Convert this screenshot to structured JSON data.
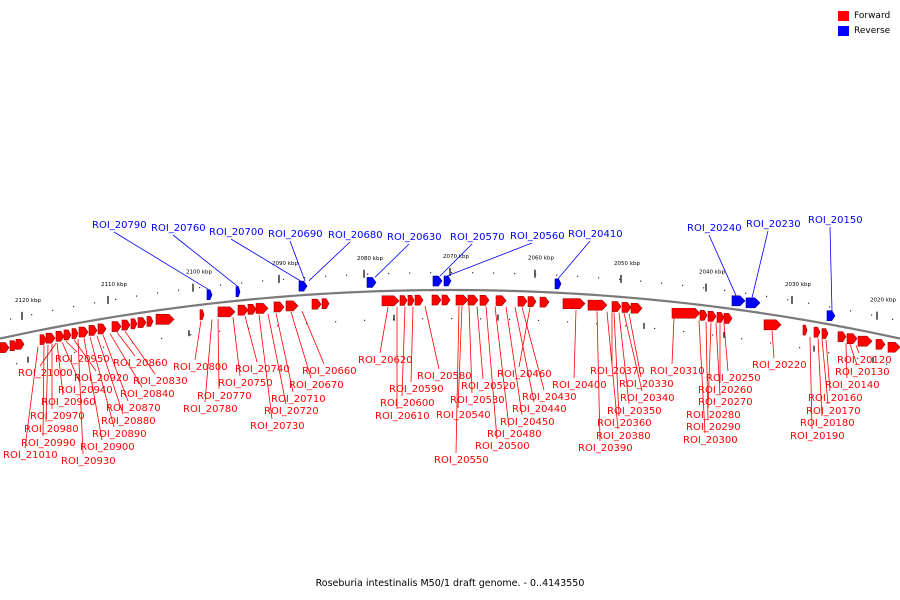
{
  "legend": {
    "forward_label": "Forward",
    "reverse_label": "Reverse",
    "forward_color": "#ff0000",
    "reverse_color": "#0000ff"
  },
  "caption": "Roseburia intestinalis M50/1 draft genome. - 0..4143550",
  "scale_labels": [
    "2120 kbp",
    "2110 kbp",
    "2100 kbp",
    "2090 kbp",
    "2080 kbp",
    "2070 kbp",
    "2060 kbp",
    "2050 kbp",
    "2040 kbp",
    "2030 kbp",
    "2020 kbp"
  ],
  "reverse_rois": [
    "ROI_20790",
    "ROI_20760",
    "ROI_20700",
    "ROI_20690",
    "ROI_20680",
    "ROI_20630",
    "ROI_20570",
    "ROI_20560",
    "ROI_20410",
    "ROI_20240",
    "ROI_20230",
    "ROI_20150"
  ],
  "forward_rois": [
    "ROI_21010",
    "ROI_20990",
    "ROI_20980",
    "ROI_20970",
    "ROI_20960",
    "ROI_20940",
    "ROI_21000",
    "ROI_20950",
    "ROI_20920",
    "ROI_20930",
    "ROI_20900",
    "ROI_20890",
    "ROI_20880",
    "ROI_20870",
    "ROI_20840",
    "ROI_20860",
    "ROI_20830",
    "ROI_20800",
    "ROI_20780",
    "ROI_20770",
    "ROI_20750",
    "ROI_20740",
    "ROI_20730",
    "ROI_20720",
    "ROI_20710",
    "ROI_20670",
    "ROI_20660",
    "ROI_20620",
    "ROI_20610",
    "ROI_20600",
    "ROI_20590",
    "ROI_20580",
    "ROI_20550",
    "ROI_20540",
    "ROI_20530",
    "ROI_20520",
    "ROI_20500",
    "ROI_20480",
    "ROI_20450",
    "ROI_20440",
    "ROI_20430",
    "ROI_20460",
    "ROI_20400",
    "ROI_20390",
    "ROI_20380",
    "ROI_20360",
    "ROI_20350",
    "ROI_20340",
    "ROI_20330",
    "ROI_20370",
    "ROI_20310",
    "ROI_20300",
    "ROI_20290",
    "ROI_20280",
    "ROI_20270",
    "ROI_20260",
    "ROI_20250",
    "ROI_20220",
    "ROI_20190",
    "ROI_20180",
    "ROI_20170",
    "ROI_20160",
    "ROI_20140",
    "ROI_20130",
    "ROI_20120"
  ]
}
